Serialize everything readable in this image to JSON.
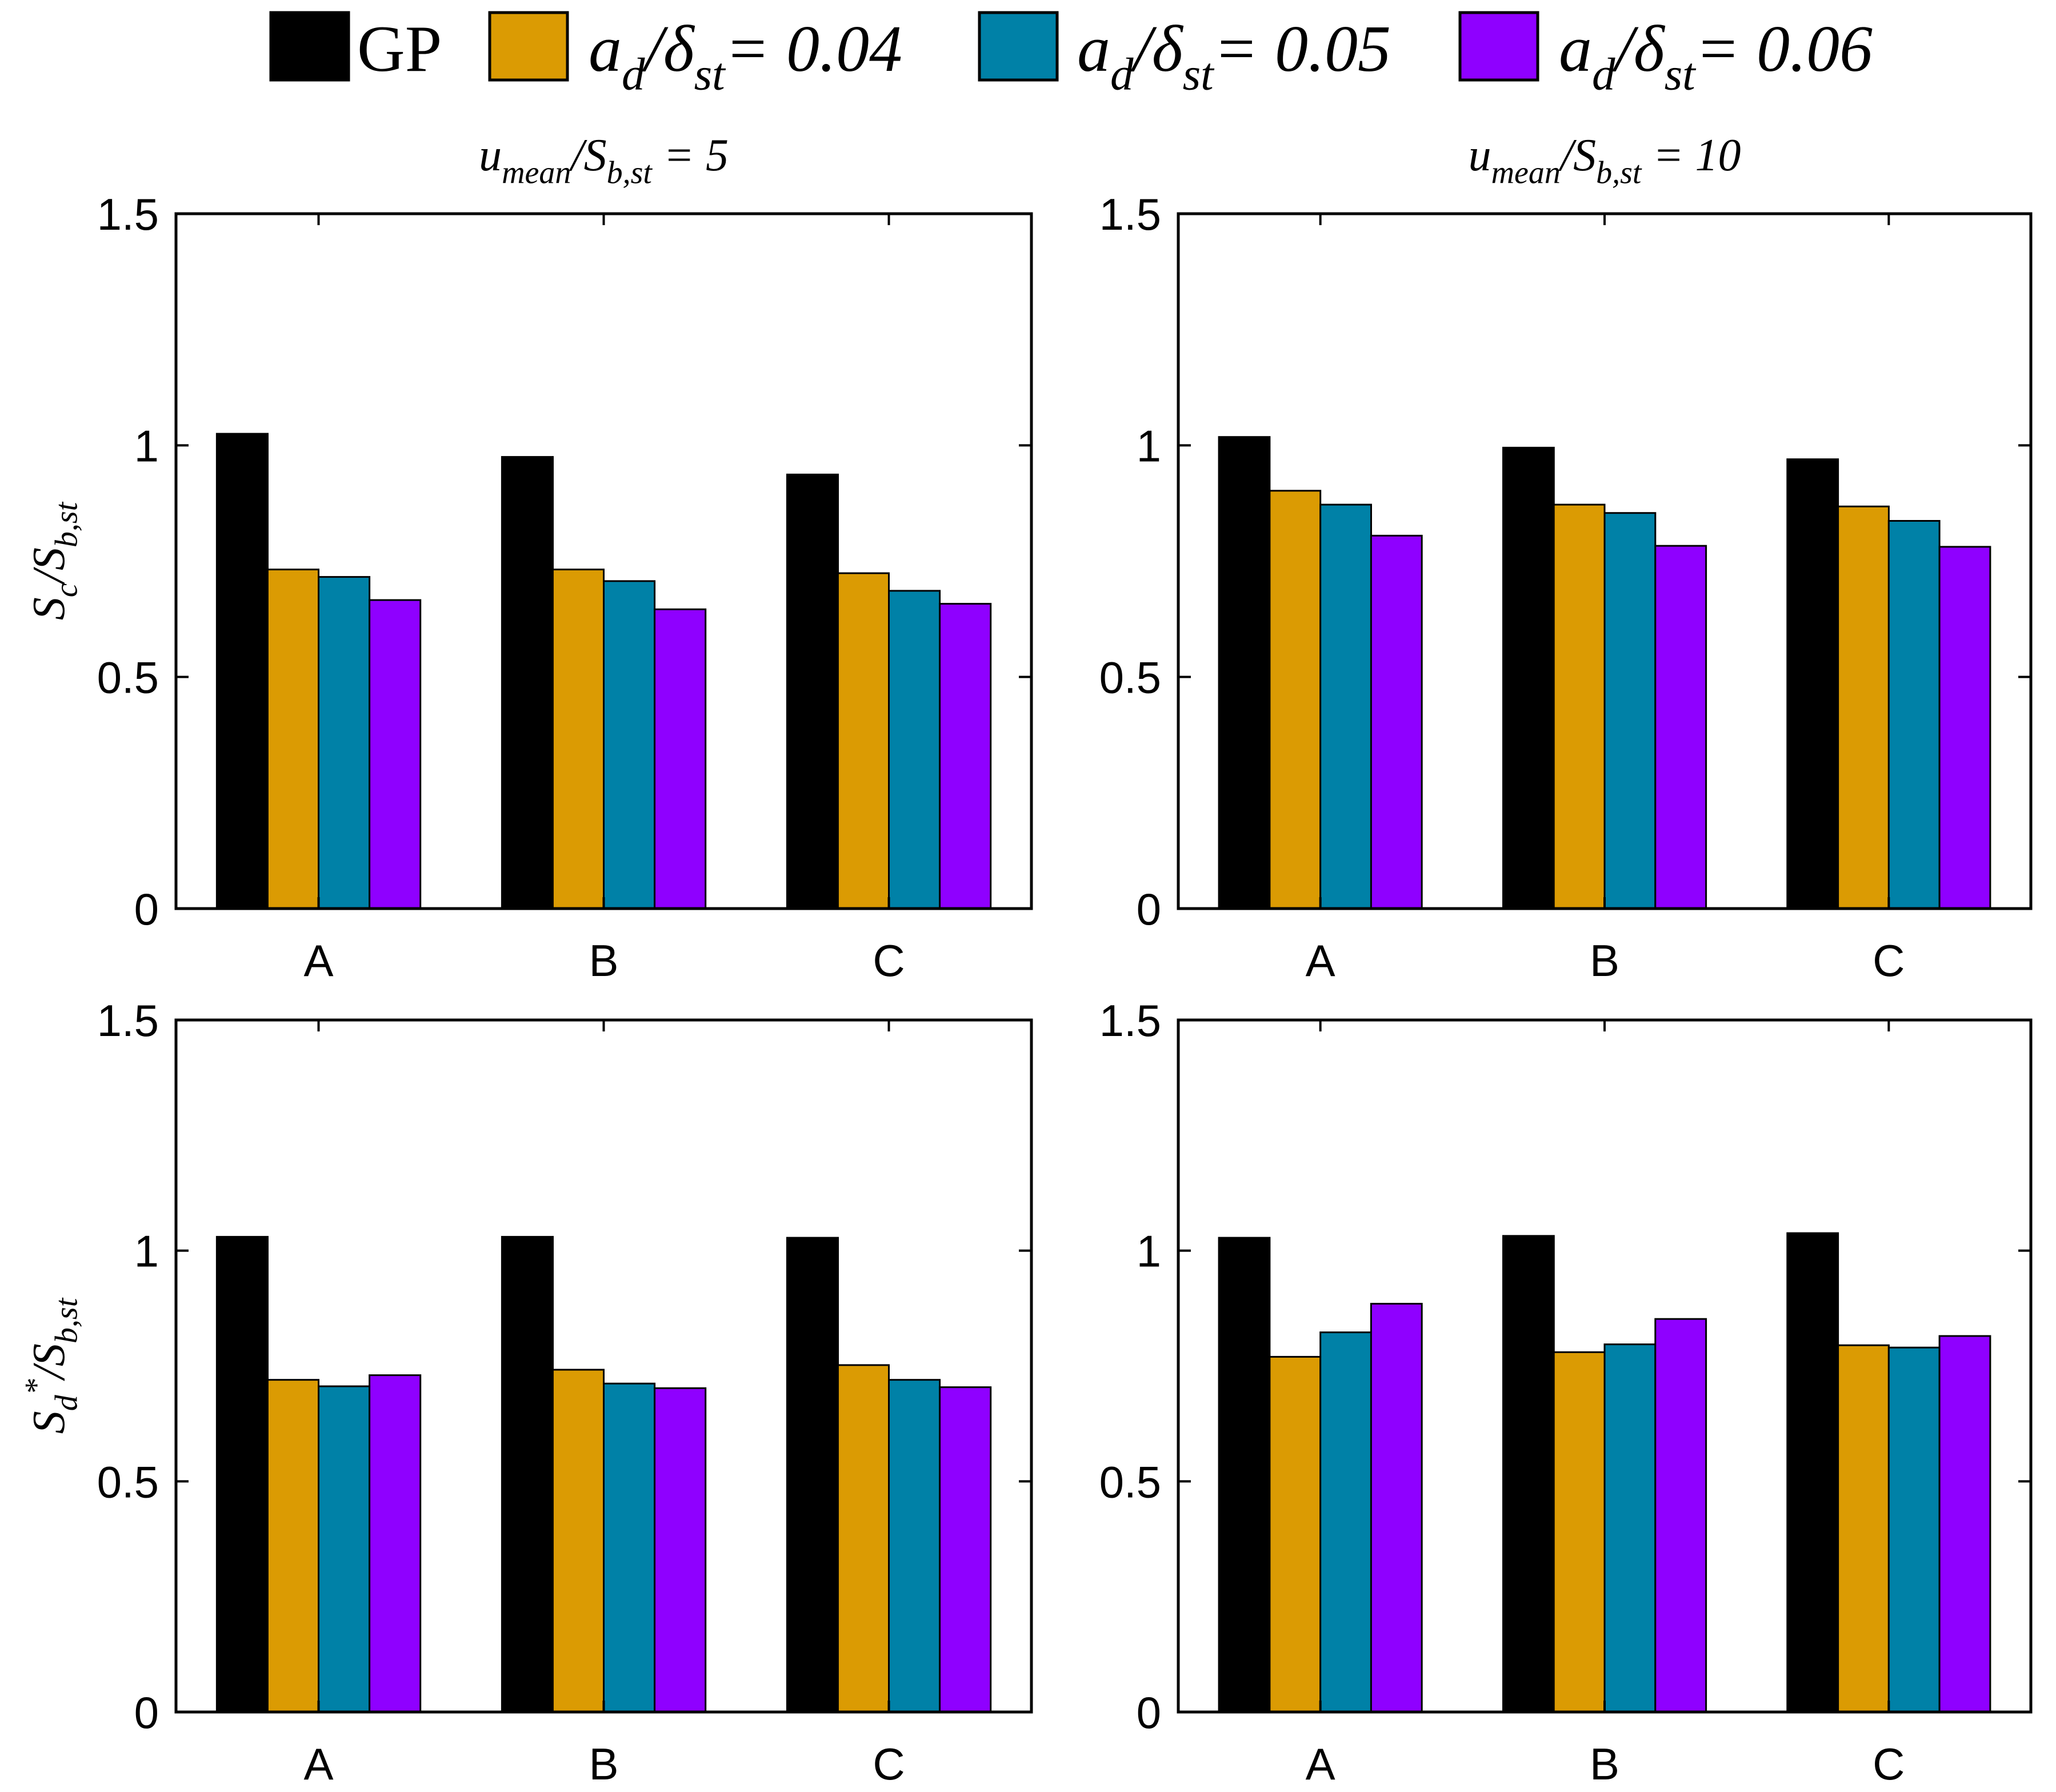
{
  "legend": {
    "entries": [
      {
        "label": "GP",
        "color": "#000000"
      },
      {
        "label": "a_d/δ_st= 0.04",
        "color": "#DB9B03"
      },
      {
        "label": "a_d/δ_st= 0.05",
        "color": "#0081A7"
      },
      {
        "label": "a_d/δ_st= 0.06",
        "color": "#8F00FF"
      }
    ]
  },
  "chart_data": [
    {
      "type": "bar",
      "panel": "top-left",
      "title": "u_mean/S_b,st = 5",
      "ylabel": "S_c/S_b,st",
      "xlabel": "",
      "categories": [
        "A",
        "B",
        "C"
      ],
      "ylim": [
        0,
        1.5
      ],
      "yticks": [
        "0",
        "0.5",
        "1",
        "1.5"
      ],
      "series": [
        {
          "name": "GP",
          "values": [
            1.025,
            0.975,
            0.937
          ]
        },
        {
          "name": "a_d/δ_st= 0.04",
          "values": [
            0.732,
            0.732,
            0.724
          ]
        },
        {
          "name": "a_d/δ_st= 0.05",
          "values": [
            0.716,
            0.707,
            0.686
          ]
        },
        {
          "name": "a_d/δ_st= 0.06",
          "values": [
            0.666,
            0.646,
            0.658
          ]
        }
      ]
    },
    {
      "type": "bar",
      "panel": "top-right",
      "title": "u_mean/S_b,st = 10",
      "ylabel": "",
      "xlabel": "",
      "categories": [
        "A",
        "B",
        "C"
      ],
      "ylim": [
        0,
        1.5
      ],
      "yticks": [
        "0",
        "0.5",
        "1",
        "1.5"
      ],
      "series": [
        {
          "name": "GP",
          "values": [
            1.018,
            0.995,
            0.97
          ]
        },
        {
          "name": "a_d/δ_st= 0.04",
          "values": [
            0.902,
            0.872,
            0.868
          ]
        },
        {
          "name": "a_d/δ_st= 0.05",
          "values": [
            0.872,
            0.854,
            0.837
          ]
        },
        {
          "name": "a_d/δ_st= 0.06",
          "values": [
            0.805,
            0.783,
            0.781
          ]
        }
      ]
    },
    {
      "type": "bar",
      "panel": "bottom-left",
      "title": "",
      "ylabel": "S_d*/S_b,st",
      "xlabel": "",
      "categories": [
        "A",
        "B",
        "C"
      ],
      "ylim": [
        0,
        1.5
      ],
      "yticks": [
        "0",
        "0.5",
        "1",
        "1.5"
      ],
      "series": [
        {
          "name": "GP",
          "values": [
            1.03,
            1.03,
            1.028
          ]
        },
        {
          "name": "a_d/δ_st= 0.04",
          "values": [
            0.72,
            0.742,
            0.752
          ]
        },
        {
          "name": "a_d/δ_st= 0.05",
          "values": [
            0.706,
            0.712,
            0.72
          ]
        },
        {
          "name": "a_d/δ_st= 0.06",
          "values": [
            0.73,
            0.702,
            0.704
          ]
        }
      ]
    },
    {
      "type": "bar",
      "panel": "bottom-right",
      "title": "",
      "ylabel": "",
      "xlabel": "",
      "categories": [
        "A",
        "B",
        "C"
      ],
      "ylim": [
        0,
        1.5
      ],
      "yticks": [
        "0",
        "0.5",
        "1",
        "1.5"
      ],
      "series": [
        {
          "name": "GP",
          "values": [
            1.028,
            1.032,
            1.038
          ]
        },
        {
          "name": "a_d/δ_st= 0.04",
          "values": [
            0.77,
            0.78,
            0.795
          ]
        },
        {
          "name": "a_d/δ_st= 0.05",
          "values": [
            0.823,
            0.797,
            0.79
          ]
        },
        {
          "name": "a_d/δ_st= 0.06",
          "values": [
            0.885,
            0.852,
            0.815
          ]
        }
      ]
    }
  ]
}
